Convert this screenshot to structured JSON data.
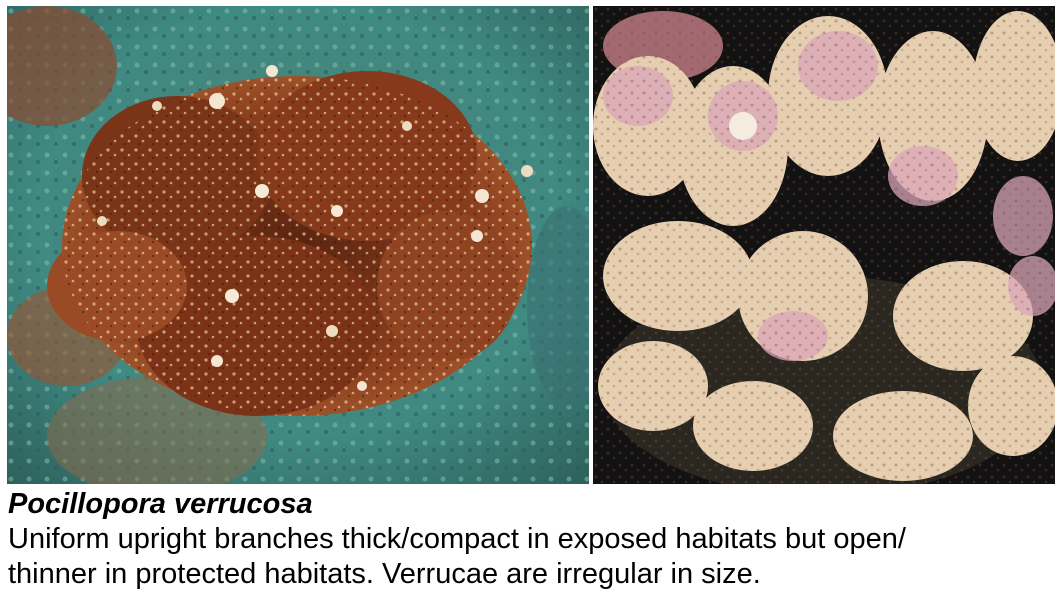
{
  "caption": {
    "species_name": "Pocillopora verrucosa",
    "description_line1": "Uniform upright branches thick/compact in exposed habitats but open/",
    "description_line2": "thinner in protected habitats. Verrucae are irregular in size."
  },
  "colors": {
    "left_photo_coral": "#8a3d1c",
    "left_photo_background": "#3f8a83",
    "right_photo_coral": "#e6cfb0",
    "right_photo_tips": "#d9a6b8",
    "right_photo_background": "#121212",
    "caption_text": "#000000"
  }
}
